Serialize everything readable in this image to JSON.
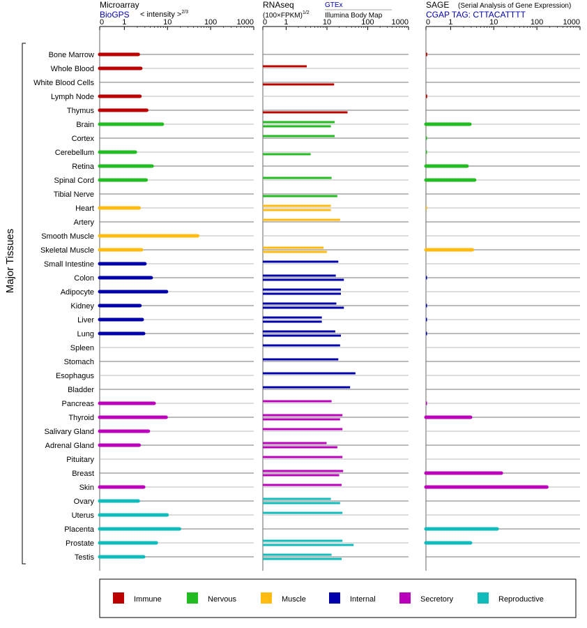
{
  "header": {
    "microarray": {
      "title": "Microarray",
      "source": "BioGPS",
      "scale": "< intensity >",
      "scale_exp": "2/3"
    },
    "rnaseq": {
      "title": "RNAseq",
      "unit": "(100×FPKM)",
      "unit_exp": "1/2",
      "source1": "GTEx",
      "source2": "Illumina Body Map"
    },
    "sage": {
      "title": "SAGE",
      "subtitle": "(Serial Analysis of Gene Expression)",
      "tag": "CGAP TAG: CTTACATTTT"
    }
  },
  "y_group_label": "Major Tissues",
  "colors": {
    "Immune": "#bb0000",
    "Nervous": "#22bb22",
    "Muscle": "#ffbb11",
    "Internal": "#0000aa",
    "Secretory": "#bb00bb",
    "Reproductive": "#11bbbb"
  },
  "legend": [
    {
      "name": "Immune",
      "color": "#bb0000"
    },
    {
      "name": "Nervous",
      "color": "#22bb22"
    },
    {
      "name": "Muscle",
      "color": "#ffbb11"
    },
    {
      "name": "Internal",
      "color": "#0000aa"
    },
    {
      "name": "Secretory",
      "color": "#bb00bb"
    },
    {
      "name": "Reproductive",
      "color": "#11bbbb"
    }
  ],
  "chart_data": [
    {
      "type": "bar",
      "panel": "Microarray",
      "scale": "intensity^(2/3)",
      "xlim": [
        0,
        1000
      ],
      "ticks": [
        {
          "label": "0",
          "value": 0
        },
        {
          "label": "1",
          "value": 1
        },
        {
          "label": "10",
          "value": 10
        },
        {
          "label": "100",
          "value": 100
        },
        {
          "label": "1000",
          "value": 1000
        }
      ],
      "categories": [
        "Bone Marrow",
        "Whole Blood",
        "White Blood Cells",
        "Lymph Node",
        "Thymus",
        "Brain",
        "Cortex",
        "Cerebellum",
        "Retina",
        "Spinal Cord",
        "Tibial Nerve",
        "Heart",
        "Artery",
        "Smooth Muscle",
        "Skeletal Muscle",
        "Small Intestine",
        "Colon",
        "Adipocyte",
        "Kidney",
        "Liver",
        "Lung",
        "Spleen",
        "Stomach",
        "Esophagus",
        "Bladder",
        "Pancreas",
        "Thyroid",
        "Salivary Gland",
        "Adrenal Gland",
        "Pituitary",
        "Breast",
        "Skin",
        "Ovary",
        "Uterus",
        "Placenta",
        "Prostate",
        "Testis"
      ],
      "groups": [
        "Immune",
        "Immune",
        "Immune",
        "Immune",
        "Immune",
        "Nervous",
        "Nervous",
        "Nervous",
        "Nervous",
        "Nervous",
        "Nervous",
        "Muscle",
        "Muscle",
        "Muscle",
        "Muscle",
        "Internal",
        "Internal",
        "Internal",
        "Internal",
        "Internal",
        "Internal",
        "Internal",
        "Internal",
        "Internal",
        "Internal",
        "Secretory",
        "Secretory",
        "Secretory",
        "Secretory",
        "Secretory",
        "Secretory",
        "Secretory",
        "Reproductive",
        "Reproductive",
        "Reproductive",
        "Reproductive",
        "Reproductive"
      ],
      "values": [
        [
          2.1
        ],
        [
          2.4
        ],
        [],
        [
          2.3
        ],
        [
          3.3
        ],
        [
          7.6
        ],
        [],
        [
          1.8
        ],
        [
          4.4
        ],
        [
          3.2
        ],
        [],
        [
          2.2
        ],
        [],
        [
          50
        ],
        [
          2.5
        ],
        [
          3.0
        ],
        [
          4.2
        ],
        [
          9.5
        ],
        [
          2.3
        ],
        [
          2.6
        ],
        [
          2.8
        ],
        [],
        [],
        [],
        [],
        [
          4.9
        ],
        [
          9.3
        ],
        [
          3.6
        ],
        [
          2.2
        ],
        [],
        [],
        [
          2.8
        ],
        [
          2.1
        ],
        [
          9.8
        ],
        [
          19
        ],
        [
          5.5
        ],
        [
          2.8
        ]
      ]
    },
    {
      "type": "bar",
      "panel": "RNAseq",
      "scale": "(100xFPKM)^(1/2)",
      "xlim": [
        0,
        1000
      ],
      "ticks": [
        {
          "label": "0",
          "value": 0
        },
        {
          "label": "1",
          "value": 1
        },
        {
          "label": "10",
          "value": 10
        },
        {
          "label": "100",
          "value": 100
        },
        {
          "label": "1000",
          "value": 1000
        }
      ],
      "series": [
        {
          "name": "GTEx",
          "values": [
            null,
            3.2,
            null,
            null,
            null,
            15.5,
            15.5,
            null,
            null,
            13,
            null,
            12.5,
            21,
            null,
            8.3,
            19,
            16.5,
            22,
            17,
            7.5,
            16,
            21,
            19,
            50,
            37,
            13,
            24,
            24,
            9.8,
            24,
            25,
            23,
            12.5,
            24,
            null,
            24,
            13
          ]
        },
        {
          "name": "Illumina Body Map",
          "values": [
            null,
            null,
            15,
            null,
            32,
            12.5,
            null,
            4,
            null,
            null,
            18,
            12.5,
            null,
            null,
            10,
            null,
            26,
            22,
            26,
            7.5,
            22,
            null,
            null,
            null,
            null,
            null,
            21,
            null,
            18,
            null,
            20,
            null,
            21,
            null,
            null,
            45,
            23
          ]
        }
      ]
    },
    {
      "type": "bar",
      "panel": "SAGE",
      "xlim": [
        0,
        1000
      ],
      "ticks": [
        {
          "label": "0",
          "value": 0
        },
        {
          "label": "1",
          "value": 1
        },
        {
          "label": "10",
          "value": 10
        },
        {
          "label": "100",
          "value": 100
        },
        {
          "label": "1000",
          "value": 1000
        }
      ],
      "values": [
        0.05,
        null,
        null,
        0.05,
        null,
        2.8,
        0.03,
        0.03,
        2.4,
        3.6,
        null,
        0.02,
        null,
        null,
        3.2,
        null,
        0.03,
        null,
        0.03,
        0.03,
        0.03,
        null,
        null,
        null,
        null,
        0.03,
        2.9,
        null,
        null,
        null,
        15,
        170,
        null,
        null,
        12,
        2.9,
        null
      ]
    }
  ]
}
